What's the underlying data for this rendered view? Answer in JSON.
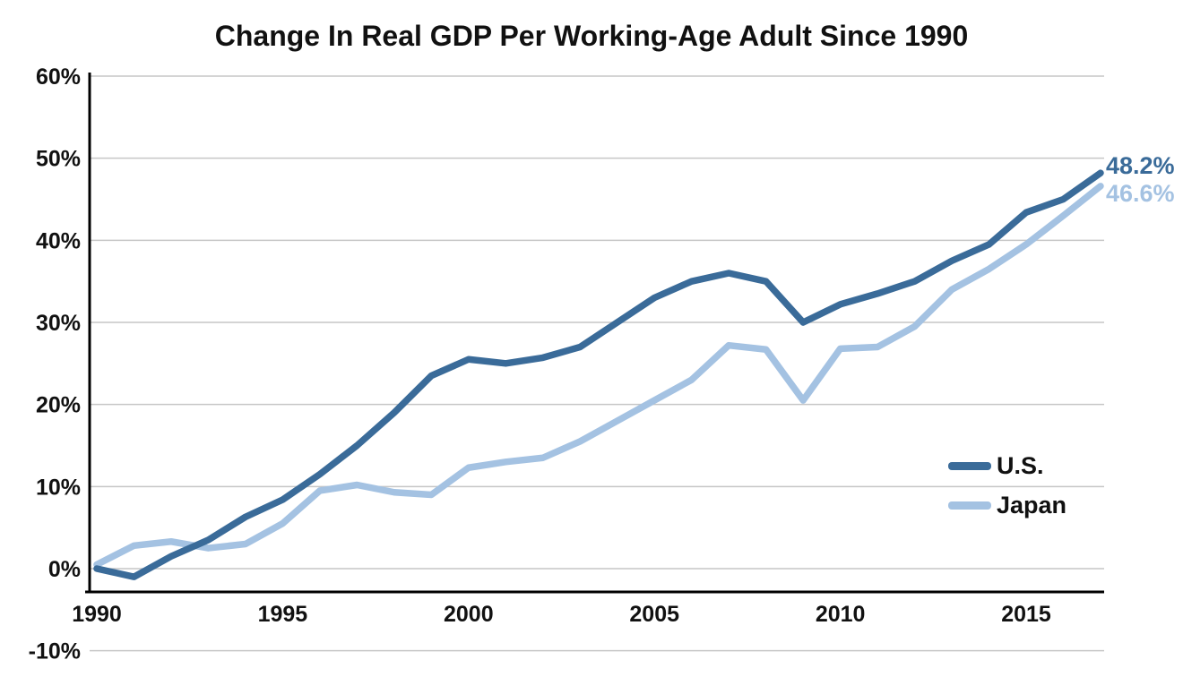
{
  "title": "Change In Real GDP Per Working-Age Adult Since 1990",
  "chart_data": {
    "type": "line",
    "title": "Change In Real GDP Per Working-Age Adult Since 1990",
    "xlabel": "",
    "ylabel": "",
    "x": [
      1990,
      1991,
      1992,
      1993,
      1994,
      1995,
      1996,
      1997,
      1998,
      1999,
      2000,
      2001,
      2002,
      2003,
      2004,
      2005,
      2006,
      2007,
      2008,
      2009,
      2010,
      2011,
      2012,
      2013,
      2014,
      2015,
      2016,
      2017
    ],
    "series": [
      {
        "name": "U.S.",
        "color": "#3a6b99",
        "end_label": "48.2%",
        "values": [
          0.0,
          -1.0,
          1.5,
          3.5,
          6.3,
          8.4,
          11.5,
          15.0,
          19.0,
          23.5,
          25.5,
          25.0,
          25.7,
          27.0,
          30.0,
          33.0,
          35.0,
          36.0,
          35.0,
          30.0,
          32.2,
          33.5,
          35.0,
          37.5,
          39.5,
          43.4,
          45.0,
          48.2
        ]
      },
      {
        "name": "Japan",
        "color": "#a4c2e2",
        "end_label": "46.6%",
        "values": [
          0.5,
          2.8,
          3.3,
          2.5,
          3.0,
          5.5,
          9.5,
          10.2,
          9.3,
          9.0,
          12.3,
          13.0,
          13.5,
          15.5,
          18.0,
          20.5,
          23.0,
          27.2,
          26.7,
          20.5,
          26.8,
          27.0,
          29.5,
          34.0,
          36.5,
          39.5,
          43.0,
          46.6
        ]
      }
    ],
    "ylim": [
      -10,
      60
    ],
    "xlim": [
      1990,
      2017
    ],
    "y_ticks": [
      {
        "value": 60,
        "label": "60%"
      },
      {
        "value": 50,
        "label": "50%"
      },
      {
        "value": 40,
        "label": "40%"
      },
      {
        "value": 30,
        "label": "30%"
      },
      {
        "value": 20,
        "label": "20%"
      },
      {
        "value": 10,
        "label": "10%"
      },
      {
        "value": 0,
        "label": "0%"
      },
      {
        "value": -10,
        "label": "-10%"
      }
    ],
    "x_ticks": [
      {
        "value": 1990,
        "label": "1990"
      },
      {
        "value": 1995,
        "label": "1995"
      },
      {
        "value": 2000,
        "label": "2000"
      },
      {
        "value": 2005,
        "label": "2005"
      },
      {
        "value": 2010,
        "label": "2010"
      },
      {
        "value": 2015,
        "label": "2015"
      }
    ],
    "grid": true,
    "legend_position": "lower right",
    "colors": {
      "grid": "#c6c6c6",
      "axis": "#000000",
      "text": "#111111"
    }
  },
  "legend": {
    "items": [
      {
        "label": "U.S."
      },
      {
        "label": "Japan"
      }
    ]
  }
}
